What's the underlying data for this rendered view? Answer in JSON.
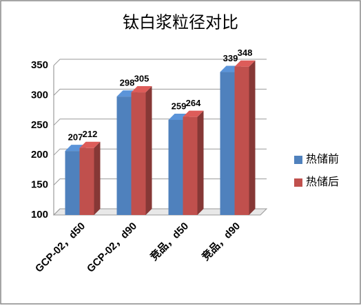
{
  "chart_data": {
    "type": "bar3d",
    "title": "钛白浆粒径对比",
    "categories": [
      "GCP-02，d50",
      "GCP-02，d90",
      "竞品，d50",
      "竞品，d90"
    ],
    "series": [
      {
        "name": "热储前",
        "color": "#4f81bd",
        "values": [
          207,
          298,
          259,
          339
        ]
      },
      {
        "name": "热储后",
        "color": "#c0504d",
        "values": [
          212,
          305,
          264,
          348
        ]
      }
    ],
    "ylim": [
      100,
      350
    ],
    "yticks": [
      100,
      150,
      200,
      250,
      300,
      350
    ],
    "grid": true,
    "legend": "right"
  }
}
